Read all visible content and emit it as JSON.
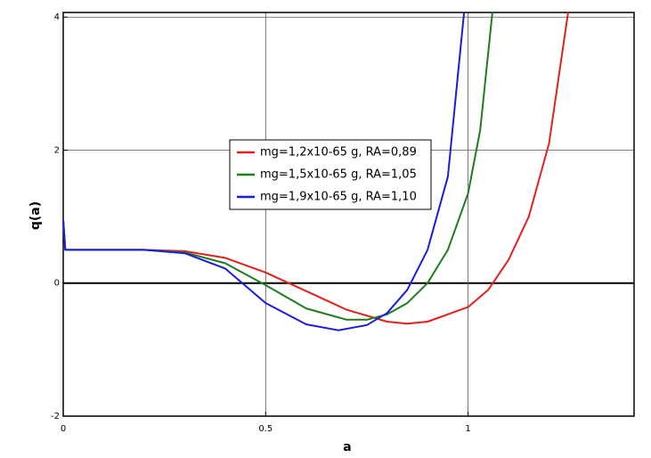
{
  "chart_data": {
    "type": "line",
    "x_label": "a",
    "y_label": "q(a)",
    "xlim": [
      0,
      1.41
    ],
    "ylim": [
      -2,
      4.07
    ],
    "xticks": [
      0,
      0.5,
      1
    ],
    "yticks": [
      -2,
      0,
      2,
      4
    ],
    "grid": true,
    "series": [
      {
        "name": "mg=1,2x10-65 g, RA=0,89",
        "color": "#e3211c",
        "x": [
          0,
          0.005,
          0.1,
          0.2,
          0.3,
          0.4,
          0.5,
          0.6,
          0.7,
          0.8,
          0.85,
          0.9,
          1.0,
          1.05,
          1.1,
          1.15,
          1.2,
          1.247
        ],
        "values": [
          0.95,
          0.5,
          0.5,
          0.5,
          0.48,
          0.38,
          0.16,
          -0.12,
          -0.4,
          -0.58,
          -0.61,
          -0.58,
          -0.36,
          -0.1,
          0.35,
          1.0,
          2.1,
          4.07
        ]
      },
      {
        "name": "mg=1,5x10-65 g, RA=1,05",
        "color": "#1e7d1e",
        "x": [
          0,
          0.005,
          0.1,
          0.2,
          0.3,
          0.4,
          0.5,
          0.6,
          0.7,
          0.75,
          0.8,
          0.85,
          0.9,
          0.95,
          1.0,
          1.03,
          1.06
        ],
        "values": [
          0.95,
          0.5,
          0.5,
          0.5,
          0.46,
          0.3,
          -0.03,
          -0.38,
          -0.55,
          -0.55,
          -0.47,
          -0.3,
          0.0,
          0.5,
          1.35,
          2.3,
          4.07
        ]
      },
      {
        "name": "mg=1,9x10-65 g, RA=1,10",
        "color": "#1c1ce0",
        "x": [
          0,
          0.005,
          0.1,
          0.2,
          0.3,
          0.4,
          0.5,
          0.6,
          0.68,
          0.75,
          0.8,
          0.85,
          0.9,
          0.95,
          0.99
        ],
        "values": [
          0.95,
          0.5,
          0.5,
          0.5,
          0.45,
          0.22,
          -0.3,
          -0.62,
          -0.71,
          -0.63,
          -0.45,
          -0.1,
          0.5,
          1.6,
          4.07
        ]
      }
    ]
  }
}
